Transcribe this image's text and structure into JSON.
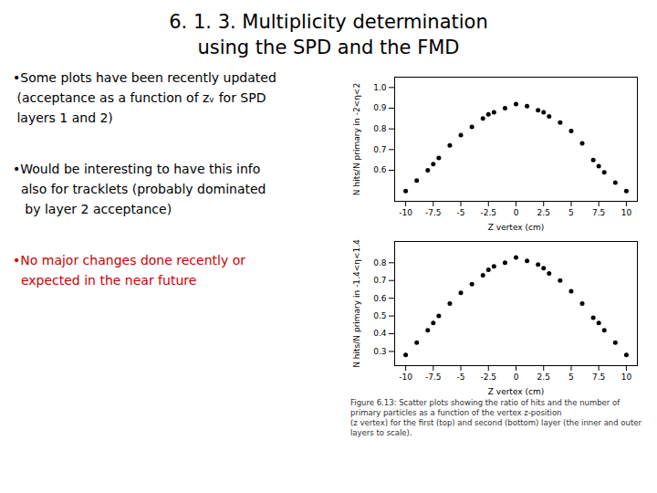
{
  "title": "6. 1. 3.  Multiplicity determination",
  "subtitle": "using the SPD and the FMD",
  "annotations": [
    {
      "text": "•Some plots have been recently updated\n (acceptance as a function of zᵥ for SPD\n layers 1 and 2)",
      "color": "#000000"
    },
    {
      "text": "•Would be interesting to have this info\n  also for tracklets (probably dominated\n   by layer 2 acceptance)",
      "color": "#000000"
    },
    {
      "text": "•No major changes done recently or\n  expected in the near future",
      "color": "#cc0000"
    }
  ],
  "caption": "Figure 6.13: Scatter plots showing the ratio of hits and the number of primary particles as a function of the vertex z-position\n(z vertex) for the first (top) and second (bottom) layer (the inner and outer layers to scale).",
  "chart_data": [
    {
      "type": "scatter",
      "xlabel": "Z vertex (cm)",
      "ylabel": "N hits/N primary in -2<η<2",
      "color": "#000000",
      "x": [
        -10,
        -9,
        -8,
        -7.5,
        -7,
        -6,
        -5,
        -4,
        -3,
        -2.5,
        -2,
        -1,
        0,
        1,
        2,
        2.5,
        3,
        4,
        5,
        6,
        7,
        7.5,
        8,
        9,
        10
      ],
      "values": [
        0.5,
        0.55,
        0.6,
        0.63,
        0.66,
        0.72,
        0.77,
        0.81,
        0.85,
        0.87,
        0.88,
        0.9,
        0.92,
        0.91,
        0.89,
        0.88,
        0.86,
        0.83,
        0.79,
        0.73,
        0.65,
        0.62,
        0.59,
        0.54,
        0.5
      ],
      "xlim": [
        -11,
        11
      ],
      "xticks": [
        -10,
        -7.5,
        -5,
        -2.5,
        0,
        2.5,
        5,
        7.5,
        10
      ],
      "ylim": [
        0.45,
        1.05
      ],
      "yticks": [
        0.6,
        0.7,
        0.8,
        0.9,
        {
          "value": 1.0,
          "label": "1.0"
        }
      ]
    },
    {
      "type": "scatter",
      "xlabel": "Z vertex (cm)",
      "ylabel": "N hits/N primary in -1.4<η<1.4",
      "color": "#000000",
      "x": [
        -10,
        -9,
        -8,
        -7.5,
        -7,
        -6,
        -5,
        -4,
        -3,
        -2.5,
        -2,
        -1,
        0,
        1,
        2,
        2.5,
        3,
        4,
        5,
        6,
        7,
        7.5,
        8,
        9,
        10
      ],
      "values": [
        0.28,
        0.35,
        0.42,
        0.46,
        0.5,
        0.57,
        0.63,
        0.68,
        0.73,
        0.76,
        0.78,
        0.8,
        0.83,
        0.81,
        0.79,
        0.77,
        0.74,
        0.7,
        0.64,
        0.57,
        0.49,
        0.46,
        0.42,
        0.35,
        0.28
      ],
      "xlim": [
        -11,
        11
      ],
      "xticks": [
        -10,
        -7.5,
        -5,
        -2.5,
        0,
        2.5,
        5,
        7.5,
        10
      ],
      "ylim": [
        0.22,
        0.92
      ],
      "yticks": [
        0.3,
        0.4,
        0.5,
        0.6,
        0.7,
        0.8
      ]
    }
  ]
}
